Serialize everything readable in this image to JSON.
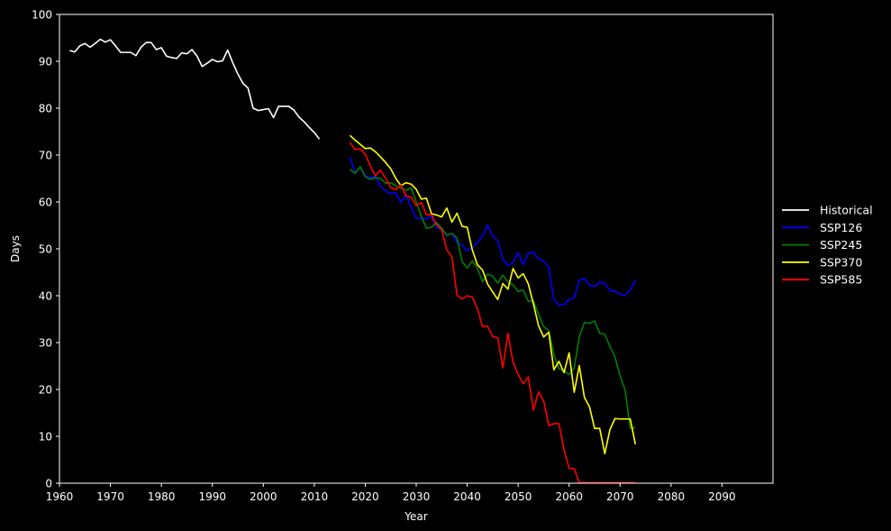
{
  "chart_data": {
    "type": "line",
    "xlabel": "Year",
    "ylabel": "Days",
    "xlim": [
      1960,
      2100
    ],
    "ylim": [
      0,
      100
    ],
    "xticks": [
      1960,
      1970,
      1980,
      1990,
      2000,
      2010,
      2020,
      2030,
      2040,
      2050,
      2060,
      2070,
      2080,
      2090
    ],
    "yticks": [
      0,
      10,
      20,
      30,
      40,
      50,
      60,
      70,
      80,
      90,
      100
    ],
    "grid": false,
    "legend_position": "center-right, outside plot",
    "series": [
      {
        "name": "Historical",
        "color": "#ffffff",
        "x": [
          1962,
          1963,
          1964,
          1965,
          1966,
          1967,
          1968,
          1969,
          1970,
          1971,
          1972,
          1973,
          1974,
          1975,
          1976,
          1977,
          1978,
          1979,
          1980,
          1981,
          1982,
          1983,
          1984,
          1985,
          1986,
          1987,
          1988,
          1989,
          1990,
          1991,
          1992,
          1993,
          1994,
          1995,
          1996,
          1997,
          1998,
          1999,
          2000,
          2001,
          2002,
          2003,
          2004,
          2005,
          2006,
          2007,
          2008,
          2009,
          2010,
          2011
        ],
        "y": [
          92.3,
          92.0,
          93.3,
          93.8,
          93.0,
          93.8,
          94.7,
          94.1,
          94.6,
          93.3,
          91.9,
          91.9,
          91.9,
          91.2,
          93.0,
          94.0,
          94.0,
          92.5,
          92.9,
          91.1,
          90.8,
          90.6,
          91.8,
          91.6,
          92.5,
          91.1,
          88.9,
          89.6,
          90.4,
          89.9,
          90.1,
          92.4,
          89.7,
          87.3,
          85.3,
          84.3,
          80.0,
          79.5,
          79.7,
          79.9,
          78.0,
          80.4,
          80.4,
          80.4,
          79.6,
          78.1,
          77.1,
          75.9,
          74.8,
          73.4
        ]
      },
      {
        "name": "SSP126",
        "color": "#0000ff",
        "x": [
          2017,
          2018,
          2019,
          2020,
          2021,
          2022,
          2023,
          2024,
          2025,
          2026,
          2027,
          2028,
          2029,
          2030,
          2031,
          2032,
          2033,
          2034,
          2035,
          2036,
          2037,
          2038,
          2039,
          2040,
          2041,
          2042,
          2043,
          2044,
          2045,
          2046,
          2047,
          2048,
          2049,
          2050,
          2051,
          2052,
          2053,
          2054,
          2055,
          2056,
          2057,
          2058,
          2059,
          2060,
          2061,
          2062,
          2063,
          2064,
          2065,
          2066,
          2067,
          2068,
          2069,
          2070,
          2071,
          2072,
          2073
        ],
        "y": [
          69.5,
          66.3,
          67.3,
          65.7,
          65.1,
          65.5,
          63.3,
          62.3,
          61.8,
          62.0,
          59.9,
          61.5,
          58.9,
          56.6,
          56.4,
          56.4,
          57.0,
          54.5,
          54.1,
          52.8,
          53.3,
          51.4,
          50.8,
          49.6,
          50.3,
          51.4,
          52.7,
          55.1,
          52.7,
          51.7,
          47.8,
          46.4,
          47.1,
          49.2,
          46.6,
          49.1,
          49.3,
          47.8,
          47.4,
          46.1,
          39.2,
          38.0,
          38.1,
          39.2,
          39.5,
          43.3,
          43.7,
          42.2,
          42.0,
          42.9,
          42.6,
          41.1,
          41.0,
          40.3,
          40.1,
          41.2,
          43.3
        ]
      },
      {
        "name": "SSP245",
        "color": "#008000",
        "x": [
          2017,
          2018,
          2019,
          2020,
          2021,
          2022,
          2023,
          2024,
          2025,
          2026,
          2027,
          2028,
          2029,
          2030,
          2031,
          2032,
          2033,
          2034,
          2035,
          2036,
          2037,
          2038,
          2039,
          2040,
          2041,
          2042,
          2043,
          2044,
          2045,
          2046,
          2047,
          2048,
          2049,
          2050,
          2051,
          2052,
          2053,
          2054,
          2055,
          2056,
          2057,
          2058,
          2059,
          2060,
          2061,
          2062,
          2063,
          2064,
          2065,
          2066,
          2067,
          2068,
          2069,
          2070,
          2071,
          2072,
          2073
        ],
        "y": [
          67.0,
          66.1,
          67.5,
          65.4,
          64.8,
          65.2,
          65.0,
          64.0,
          64.1,
          63.4,
          62.9,
          62.5,
          63.0,
          60.0,
          56.9,
          54.4,
          54.6,
          55.6,
          54.4,
          52.9,
          53.3,
          52.3,
          47.3,
          45.9,
          47.4,
          45.9,
          43.0,
          44.6,
          44.2,
          42.7,
          44.4,
          42.9,
          42.3,
          40.9,
          41.2,
          38.8,
          38.9,
          36.0,
          33.4,
          32.6,
          27.5,
          24.4,
          24.0,
          23.2,
          24.6,
          31.2,
          34.3,
          34.1,
          34.6,
          32.0,
          31.8,
          29.2,
          26.9,
          22.9,
          19.8,
          11.7,
          11.9
        ]
      },
      {
        "name": "SSP370",
        "color": "#ffff00",
        "x": [
          2017,
          2018,
          2019,
          2020,
          2021,
          2022,
          2023,
          2024,
          2025,
          2026,
          2027,
          2028,
          2029,
          2030,
          2031,
          2032,
          2033,
          2034,
          2035,
          2036,
          2037,
          2038,
          2039,
          2040,
          2041,
          2042,
          2043,
          2044,
          2045,
          2046,
          2047,
          2048,
          2049,
          2050,
          2051,
          2052,
          2053,
          2054,
          2055,
          2056,
          2057,
          2058,
          2059,
          2060,
          2061,
          2062,
          2063,
          2064,
          2065,
          2066,
          2067,
          2068,
          2069,
          2070,
          2071,
          2072,
          2073
        ],
        "y": [
          74.2,
          73.2,
          72.3,
          71.4,
          71.5,
          70.7,
          69.6,
          68.4,
          67.1,
          65.0,
          63.5,
          64.1,
          63.8,
          62.7,
          60.6,
          60.8,
          57.5,
          57.2,
          56.8,
          58.7,
          55.7,
          57.6,
          54.8,
          54.6,
          49.8,
          46.6,
          45.5,
          42.5,
          40.8,
          39.2,
          42.6,
          41.4,
          45.8,
          43.8,
          44.7,
          42.5,
          38.2,
          33.6,
          31.2,
          32.2,
          24.2,
          26.0,
          23.6,
          27.8,
          19.4,
          25.1,
          18.3,
          16.3,
          11.7,
          11.7,
          6.3,
          11.4,
          13.8,
          13.7,
          13.7,
          13.7,
          8.3
        ]
      },
      {
        "name": "SSP585",
        "color": "#ff0000",
        "x": [
          2017,
          2018,
          2019,
          2020,
          2021,
          2022,
          2023,
          2024,
          2025,
          2026,
          2027,
          2028,
          2029,
          2030,
          2031,
          2032,
          2033,
          2034,
          2035,
          2036,
          2037,
          2038,
          2039,
          2040,
          2041,
          2042,
          2043,
          2044,
          2045,
          2046,
          2047,
          2048,
          2049,
          2050,
          2051,
          2052,
          2053,
          2054,
          2055,
          2056,
          2057,
          2058,
          2059,
          2060,
          2061,
          2062,
          2063,
          2064,
          2065,
          2066,
          2067,
          2068,
          2069,
          2070,
          2071,
          2072,
          2073
        ],
        "y": [
          72.7,
          71.2,
          71.3,
          70.2,
          67.6,
          65.6,
          66.8,
          65.0,
          63.1,
          62.6,
          63.6,
          61.3,
          61.0,
          59.2,
          59.9,
          57.3,
          57.3,
          55.1,
          54.1,
          49.8,
          48.3,
          40.1,
          39.3,
          40.0,
          39.7,
          37.3,
          33.4,
          33.5,
          31.3,
          31.0,
          24.6,
          32.0,
          25.8,
          23.2,
          21.2,
          22.7,
          15.6,
          19.5,
          17.6,
          12.3,
          12.7,
          12.7,
          7.1,
          3.2,
          3.1,
          0.1,
          0.1,
          0.1,
          0.1,
          0.1,
          0.1,
          0.1,
          0.1,
          0.1,
          0.1,
          0.1,
          0.1
        ]
      }
    ]
  }
}
